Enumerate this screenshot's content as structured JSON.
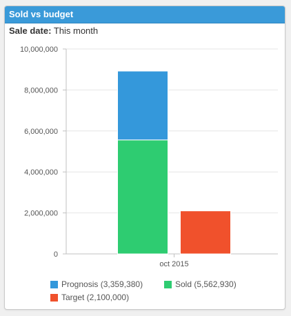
{
  "widget": {
    "title": "Sold vs budget",
    "filter_label": "Sale date:",
    "filter_value": "This month"
  },
  "chart_data": {
    "type": "bar",
    "stacked": true,
    "categories": [
      "oct 2015"
    ],
    "ylim": [
      0,
      10000000
    ],
    "yticks": [
      "0",
      "2,000,000",
      "4,000,000",
      "6,000,000",
      "8,000,000",
      "10,000,000"
    ],
    "grid": true,
    "legend_position": "bottom",
    "series": [
      {
        "name": "Sold",
        "legend": "Sold (5,562,930)",
        "stack": "actual",
        "values": [
          5562930
        ],
        "color": "#2ecc71"
      },
      {
        "name": "Prognosis",
        "legend": "Prognosis (3,359,380)",
        "stack": "actual",
        "values": [
          3359380
        ],
        "color": "#3498db"
      },
      {
        "name": "Target",
        "legend": "Target (2,100,000)",
        "stack": "target",
        "values": [
          2100000
        ],
        "color": "#f0512c"
      }
    ]
  }
}
